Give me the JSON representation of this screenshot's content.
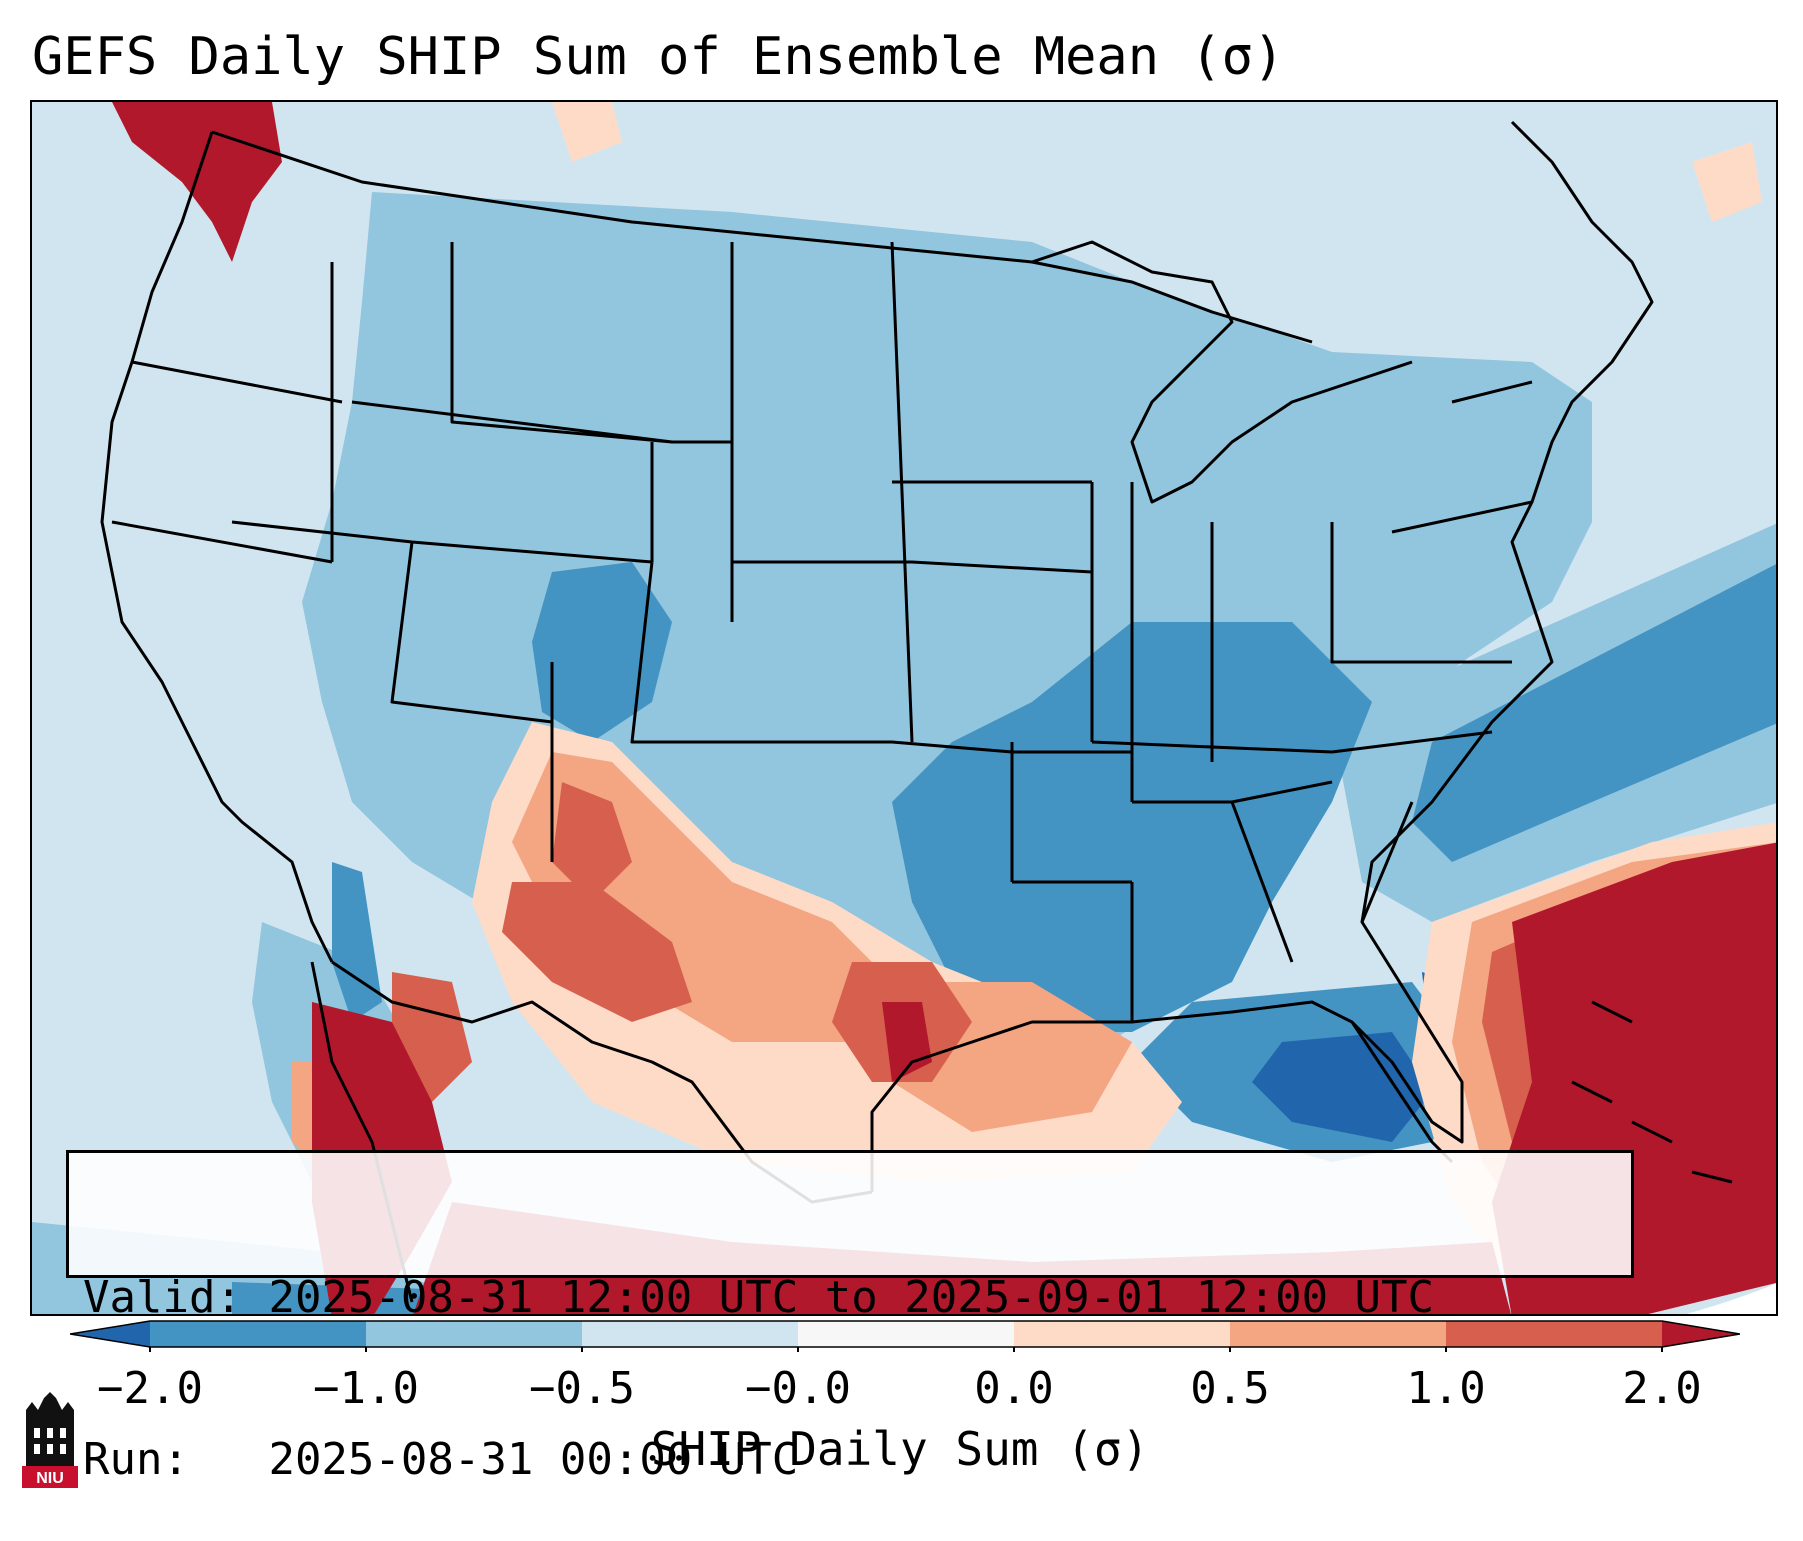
{
  "title": "GEFS Daily SHIP Sum of Ensemble Mean (σ)",
  "valid_label": "Valid:",
  "valid_value": "2025-08-31 12:00 UTC to 2025-09-01 12:00 UTC",
  "run_label": "Run:",
  "run_value": "2025-08-31 00:00 UTC",
  "colorbar": {
    "label": "SHIP Daily Sum (σ)",
    "ticks": [
      "−2.0",
      "−1.0",
      "−0.5",
      "−0.0",
      "0.0",
      "0.5",
      "1.0",
      "2.0"
    ],
    "colors": {
      "below_min": "#2166ac",
      "bin_m2_m1": "#4393c3",
      "bin_m1_m05": "#92c5de",
      "bin_m05_0": "#d1e5f0",
      "bin_0_0": "#f7f7f7",
      "bin_0_05": "#fddbc7",
      "bin_05_1": "#f4a582",
      "bin_1_2": "#d6604d",
      "above_max": "#b2182b"
    }
  },
  "logo": {
    "text": "NIU",
    "color": "#c8102e"
  }
}
